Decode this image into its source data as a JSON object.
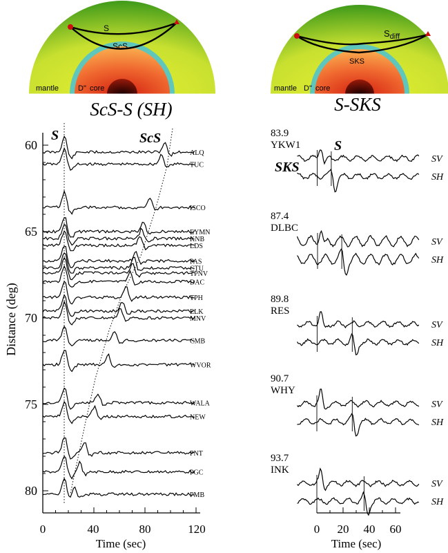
{
  "left_panel": {
    "title": "ScS-S (SH)",
    "earth_labels": {
      "ray1": "S",
      "ray2": "ScS",
      "mantle": "mantle",
      "dpp": "D\"",
      "core": "core"
    },
    "phase_labels": {
      "s": "S",
      "scs": "ScS"
    },
    "ylabel": "Distance (deg)",
    "xlabel": "Time (sec)",
    "yticks": [
      "60",
      "65",
      "70",
      "75",
      "80"
    ],
    "xticks": [
      "0",
      "40",
      "80",
      "120"
    ],
    "stations": [
      {
        "name": "ALQ",
        "distance": 60.4
      },
      {
        "name": "TUC",
        "distance": 61.1
      },
      {
        "name": "ISCO",
        "distance": 63.6
      },
      {
        "name": "EYMN",
        "distance": 65.0
      },
      {
        "name": "KNB",
        "distance": 65.4
      },
      {
        "name": "LDS",
        "distance": 65.8
      },
      {
        "name": "PAS",
        "distance": 66.7
      },
      {
        "name": "CTU",
        "distance": 67.1
      },
      {
        "name": "TPNV",
        "distance": 67.4
      },
      {
        "name": "DAC",
        "distance": 67.9
      },
      {
        "name": "TPH",
        "distance": 68.8
      },
      {
        "name": "ELK",
        "distance": 69.6
      },
      {
        "name": "MNV",
        "distance": 70.0
      },
      {
        "name": "CMB",
        "distance": 71.3
      },
      {
        "name": "WVOR",
        "distance": 72.7
      },
      {
        "name": "WALA",
        "distance": 74.9
      },
      {
        "name": "NEW",
        "distance": 75.7
      },
      {
        "name": "PNT",
        "distance": 77.8
      },
      {
        "name": "PGC",
        "distance": 78.9
      },
      {
        "name": "PMB",
        "distance": 80.2
      }
    ]
  },
  "right_panel": {
    "title": "S-SKS",
    "earth_labels": {
      "ray1": "S",
      "ray1_sub": "diff",
      "ray2": "SKS",
      "mantle": "mantle",
      "dpp": "D\"",
      "core": "core"
    },
    "phase_labels": {
      "s": "S",
      "sks": "SKS"
    },
    "xlabel": "Time (sec)",
    "xticks": [
      "0",
      "20",
      "40",
      "60"
    ],
    "component_labels": {
      "sv": "SV",
      "sh": "SH"
    },
    "stations": [
      {
        "distance": "83.9",
        "name": "YKW1"
      },
      {
        "distance": "87.4",
        "name": "DLBC"
      },
      {
        "distance": "89.8",
        "name": "RES"
      },
      {
        "distance": "90.7",
        "name": "WHY"
      },
      {
        "distance": "93.7",
        "name": "INK"
      }
    ]
  },
  "colors": {
    "mantle_outer": "#3f9a1a",
    "mantle_inner": "#d8ea2a",
    "dpp_layer": "#5fc6bc",
    "core_outer": "#f7a23c",
    "core_inner": "#e8301c",
    "inner_core": "#2a0000",
    "source": "#cc1010"
  }
}
